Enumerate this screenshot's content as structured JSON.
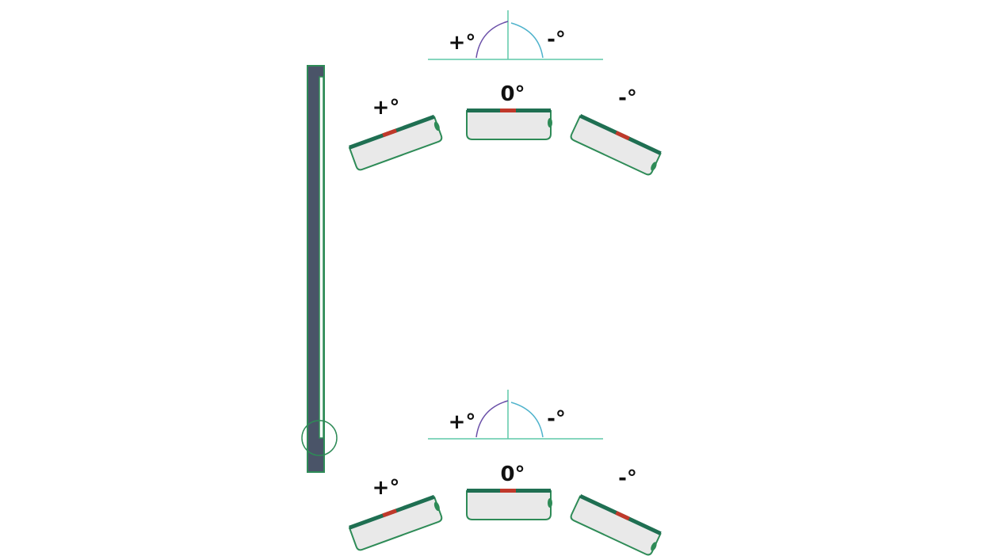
{
  "labels": {
    "plus": "+°",
    "minus": "-°",
    "zero": "0°"
  },
  "colors": {
    "green": "#2e8b57",
    "dark_green": "#1f6f52",
    "red": "#c0392b",
    "bar": "#4a5468",
    "fill": "#e9e9e9",
    "purple_arc": "#6a4fa8",
    "cyan_arc": "#4fb3cc",
    "axis": "#5ec9a8"
  }
}
